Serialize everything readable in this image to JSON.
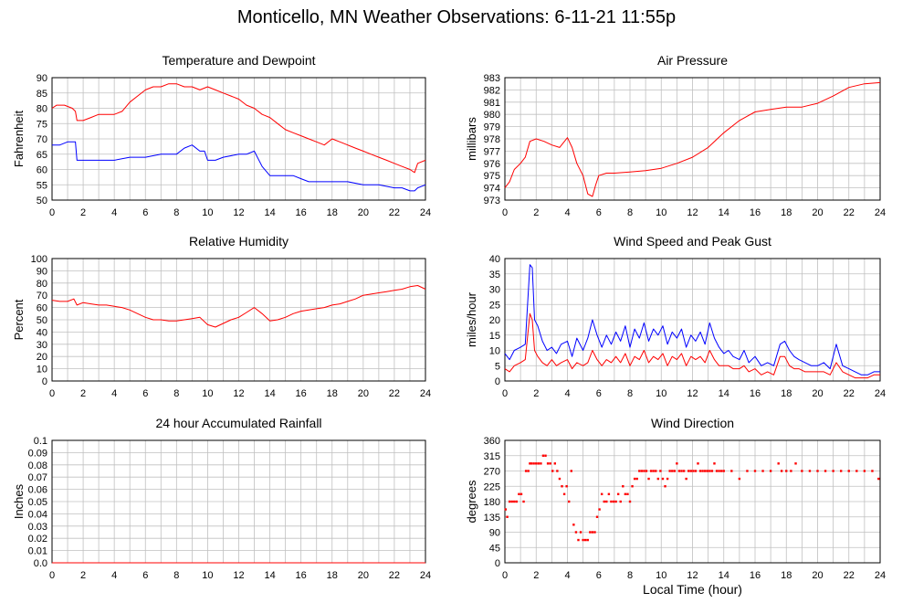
{
  "page_title": "Monticello, MN Weather Observations: 6-11-21 11:55p",
  "colors": {
    "red": "#ff0000",
    "blue": "#0000ff",
    "grid": "#c0c0c0"
  },
  "chart_data": [
    {
      "type": "line",
      "title": "Temperature and Dewpoint",
      "xlabel": "",
      "ylabel": "Fahrenheit",
      "xlim": [
        0,
        24
      ],
      "ylim": [
        50,
        90
      ],
      "xticks": [
        0,
        2,
        4,
        6,
        8,
        10,
        12,
        14,
        16,
        18,
        20,
        22,
        24
      ],
      "yticks": [
        50,
        55,
        60,
        65,
        70,
        75,
        80,
        85,
        90
      ],
      "grid": true,
      "series": [
        {
          "color": "#ff0000",
          "style": "line",
          "x": [
            0,
            0.3,
            0.8,
            1.3,
            1.5,
            1.6,
            2,
            2.5,
            3,
            3.5,
            4,
            4.5,
            5,
            5.5,
            6,
            6.5,
            7,
            7.5,
            8,
            8.5,
            9,
            9.5,
            10,
            10.5,
            11,
            11.5,
            12,
            12.5,
            13,
            13.5,
            14,
            14.5,
            15,
            15.5,
            16,
            16.5,
            17,
            17.5,
            18,
            18.5,
            19,
            19.5,
            20,
            20.5,
            21,
            21.5,
            22,
            22.5,
            23,
            23.3,
            23.5,
            24
          ],
          "y": [
            80,
            81,
            81,
            80,
            79,
            76,
            76,
            77,
            78,
            78,
            78,
            79,
            82,
            84,
            86,
            87,
            87,
            88,
            88,
            87,
            87,
            86,
            87,
            86,
            85,
            84,
            83,
            81,
            80,
            78,
            77,
            75,
            73,
            72,
            71,
            70,
            69,
            68,
            70,
            69,
            68,
            67,
            66,
            65,
            64,
            63,
            62,
            61,
            60,
            59,
            62,
            63
          ]
        },
        {
          "color": "#0000ff",
          "style": "line",
          "x": [
            0,
            0.5,
            1,
            1.5,
            1.6,
            2,
            3,
            4,
            5,
            6,
            7,
            8,
            8.5,
            9,
            9.5,
            9.8,
            10,
            10.5,
            11,
            12,
            12.5,
            13,
            13.5,
            14,
            14.5,
            15,
            15.5,
            16,
            16.5,
            17,
            18,
            19,
            20,
            21,
            22,
            22.5,
            23,
            23.3,
            23.5,
            24
          ],
          "y": [
            68,
            68,
            69,
            69,
            63,
            63,
            63,
            63,
            64,
            64,
            65,
            65,
            67,
            68,
            66,
            66,
            63,
            63,
            64,
            65,
            65,
            66,
            61,
            58,
            58,
            58,
            58,
            57,
            56,
            56,
            56,
            56,
            55,
            55,
            54,
            54,
            53,
            53,
            54,
            55
          ]
        }
      ]
    },
    {
      "type": "line",
      "title": "Air Pressure",
      "xlabel": "",
      "ylabel": "millibars",
      "xlim": [
        0,
        24
      ],
      "ylim": [
        973,
        983
      ],
      "xticks": [
        0,
        2,
        4,
        6,
        8,
        10,
        12,
        14,
        16,
        18,
        20,
        22,
        24
      ],
      "yticks": [
        973,
        974,
        975,
        976,
        977,
        978,
        979,
        980,
        981,
        982,
        983
      ],
      "grid": true,
      "series": [
        {
          "color": "#ff0000",
          "style": "line",
          "x": [
            0,
            0.3,
            0.6,
            1,
            1.3,
            1.6,
            2,
            2.5,
            3,
            3.5,
            4,
            4.3,
            4.6,
            5,
            5.3,
            5.6,
            5.8,
            6,
            6.5,
            7,
            8,
            9,
            10,
            11,
            12,
            13,
            14,
            15,
            16,
            17,
            18,
            19,
            20,
            21,
            22,
            23,
            24
          ],
          "y": [
            974,
            974.5,
            975.5,
            976,
            976.5,
            977.8,
            978,
            977.8,
            977.5,
            977.3,
            978.1,
            977.3,
            976,
            975,
            973.5,
            973.3,
            974.2,
            975,
            975.2,
            975.2,
            975.3,
            975.4,
            975.6,
            976,
            976.5,
            977.3,
            978.5,
            979.5,
            980.2,
            980.4,
            980.6,
            980.6,
            980.9,
            981.5,
            982.2,
            982.5,
            982.6
          ]
        }
      ]
    },
    {
      "type": "line",
      "title": "Relative Humidity",
      "xlabel": "",
      "ylabel": "Percent",
      "xlim": [
        0,
        24
      ],
      "ylim": [
        0,
        100
      ],
      "xticks": [
        0,
        2,
        4,
        6,
        8,
        10,
        12,
        14,
        16,
        18,
        20,
        22,
        24
      ],
      "yticks": [
        0,
        10,
        20,
        30,
        40,
        50,
        60,
        70,
        80,
        90,
        100
      ],
      "grid": true,
      "series": [
        {
          "color": "#ff0000",
          "style": "line",
          "x": [
            0,
            0.5,
            1,
            1.4,
            1.6,
            2,
            2.5,
            3,
            3.5,
            4,
            4.5,
            5,
            5.5,
            6,
            6.5,
            7,
            7.5,
            8,
            8.5,
            9,
            9.5,
            10,
            10.5,
            11,
            11.5,
            12,
            12.5,
            13,
            13.5,
            14,
            14.5,
            15,
            15.5,
            16,
            16.5,
            17,
            17.5,
            18,
            18.5,
            19,
            19.5,
            20,
            20.5,
            21,
            21.5,
            22,
            22.5,
            23,
            23.5,
            24
          ],
          "y": [
            66,
            65,
            65,
            67,
            62,
            64,
            63,
            62,
            62,
            61,
            60,
            58,
            55,
            52,
            50,
            50,
            49,
            49,
            50,
            51,
            52,
            46,
            44,
            47,
            50,
            52,
            56,
            60,
            55,
            49,
            50,
            52,
            55,
            57,
            58,
            59,
            60,
            62,
            63,
            65,
            67,
            70,
            71,
            72,
            73,
            74,
            75,
            77,
            78,
            75
          ]
        }
      ]
    },
    {
      "type": "line",
      "title": "Wind Speed and Peak Gust",
      "xlabel": "",
      "ylabel": "miles/hour",
      "xlim": [
        0,
        24
      ],
      "ylim": [
        0,
        40
      ],
      "xticks": [
        0,
        2,
        4,
        6,
        8,
        10,
        12,
        14,
        16,
        18,
        20,
        22,
        24
      ],
      "yticks": [
        0,
        5,
        10,
        15,
        20,
        25,
        30,
        35,
        40
      ],
      "grid": true,
      "series": [
        {
          "color": "#0000ff",
          "style": "line",
          "x": [
            0,
            0.3,
            0.6,
            1,
            1.3,
            1.6,
            1.75,
            1.9,
            2.1,
            2.4,
            2.7,
            3,
            3.3,
            3.6,
            4,
            4.3,
            4.6,
            5,
            5.3,
            5.6,
            5.9,
            6.2,
            6.5,
            6.8,
            7.1,
            7.4,
            7.7,
            8,
            8.3,
            8.6,
            8.9,
            9.2,
            9.5,
            9.8,
            10.1,
            10.4,
            10.7,
            11,
            11.3,
            11.6,
            11.9,
            12.2,
            12.5,
            12.8,
            13.1,
            13.4,
            13.7,
            14,
            14.3,
            14.6,
            15,
            15.3,
            15.6,
            16,
            16.4,
            16.8,
            17.2,
            17.6,
            17.9,
            18.2,
            18.5,
            18.8,
            19.2,
            19.6,
            20,
            20.4,
            20.8,
            21.2,
            21.6,
            22,
            22.4,
            22.8,
            23.2,
            23.6,
            24
          ],
          "y": [
            9,
            7,
            10,
            11,
            12,
            38,
            37,
            20,
            18,
            13,
            10,
            11,
            9,
            12,
            13,
            8,
            14,
            10,
            14,
            20,
            15,
            11,
            15,
            12,
            16,
            13,
            18,
            11,
            17,
            14,
            19,
            13,
            17,
            15,
            18,
            12,
            16,
            14,
            17,
            11,
            15,
            13,
            16,
            12,
            19,
            14,
            11,
            9,
            10,
            8,
            7,
            10,
            6,
            8,
            5,
            6,
            5,
            12,
            13,
            10,
            8,
            7,
            6,
            5,
            5,
            6,
            4,
            12,
            5,
            4,
            3,
            2,
            2,
            3,
            3
          ]
        },
        {
          "color": "#ff0000",
          "style": "line",
          "x": [
            0,
            0.3,
            0.6,
            1,
            1.3,
            1.6,
            1.75,
            1.9,
            2.1,
            2.4,
            2.7,
            3,
            3.3,
            3.6,
            4,
            4.3,
            4.6,
            5,
            5.3,
            5.6,
            5.9,
            6.2,
            6.5,
            6.8,
            7.1,
            7.4,
            7.7,
            8,
            8.3,
            8.6,
            8.9,
            9.2,
            9.5,
            9.8,
            10.1,
            10.4,
            10.7,
            11,
            11.3,
            11.6,
            11.9,
            12.2,
            12.5,
            12.8,
            13.1,
            13.4,
            13.7,
            14,
            14.3,
            14.6,
            15,
            15.3,
            15.6,
            16,
            16.4,
            16.8,
            17.2,
            17.6,
            17.9,
            18.2,
            18.5,
            18.8,
            19.2,
            19.6,
            20,
            20.4,
            20.8,
            21.2,
            21.6,
            22,
            22.4,
            22.8,
            23.2,
            23.6,
            24
          ],
          "y": [
            4,
            3,
            5,
            6,
            7,
            22,
            20,
            10,
            8,
            6,
            5,
            7,
            5,
            6,
            7,
            4,
            6,
            5,
            6,
            10,
            7,
            5,
            7,
            6,
            8,
            6,
            9,
            5,
            8,
            7,
            10,
            6,
            8,
            7,
            9,
            5,
            8,
            7,
            9,
            5,
            8,
            7,
            8,
            6,
            10,
            7,
            5,
            5,
            5,
            4,
            4,
            5,
            3,
            4,
            2,
            3,
            2,
            8,
            8,
            5,
            4,
            4,
            3,
            3,
            3,
            3,
            2,
            6,
            3,
            2,
            1,
            1,
            1,
            2,
            2
          ]
        }
      ]
    },
    {
      "type": "line",
      "title": "24 hour Accumulated Rainfall",
      "xlabel": "",
      "ylabel": "Inches",
      "xlim": [
        0,
        24
      ],
      "ylim": [
        0,
        0.1
      ],
      "xticks": [
        0,
        2,
        4,
        6,
        8,
        10,
        12,
        14,
        16,
        18,
        20,
        22,
        24
      ],
      "yticks": [
        0.0,
        0.01,
        0.02,
        0.03,
        0.04,
        0.05,
        0.06,
        0.07,
        0.08,
        0.09,
        0.1
      ],
      "ytick_labels": [
        "0.0",
        "0.01",
        "0.02",
        "0.03",
        "0.04",
        "0.05",
        "0.06",
        "0.07",
        "0.08",
        "0.09",
        "0.1"
      ],
      "grid": true,
      "series": [
        {
          "color": "#ff0000",
          "style": "line",
          "x": [
            0,
            24
          ],
          "y": [
            0,
            0
          ]
        }
      ]
    },
    {
      "type": "scatter",
      "title": "Wind Direction",
      "xlabel": "Local Time (hour)",
      "ylabel": "degrees",
      "xlim": [
        0,
        24
      ],
      "ylim": [
        0,
        360
      ],
      "xticks": [
        0,
        2,
        4,
        6,
        8,
        10,
        12,
        14,
        16,
        18,
        20,
        22,
        24
      ],
      "yticks": [
        0,
        45,
        90,
        135,
        180,
        225,
        270,
        315,
        360
      ],
      "grid": true,
      "series": [
        {
          "color": "#ff0000",
          "style": "points",
          "x": [
            0.05,
            0.15,
            0.3,
            0.45,
            0.6,
            0.75,
            0.9,
            1.05,
            1.2,
            1.35,
            1.5,
            1.6,
            1.7,
            1.85,
            2.0,
            2.15,
            2.3,
            2.45,
            2.6,
            2.75,
            2.9,
            3.05,
            3.2,
            3.35,
            3.5,
            3.65,
            3.8,
            3.95,
            4.1,
            4.25,
            4.4,
            4.55,
            4.7,
            4.85,
            5.0,
            5.15,
            5.3,
            5.45,
            5.6,
            5.75,
            5.9,
            6.05,
            6.2,
            6.35,
            6.5,
            6.65,
            6.8,
            6.95,
            7.1,
            7.25,
            7.4,
            7.55,
            7.7,
            7.85,
            8.0,
            8.15,
            8.3,
            8.45,
            8.6,
            8.75,
            8.9,
            9.05,
            9.2,
            9.35,
            9.5,
            9.65,
            9.8,
            9.95,
            10.1,
            10.25,
            10.4,
            10.55,
            10.7,
            10.85,
            11.0,
            11.15,
            11.3,
            11.45,
            11.6,
            11.75,
            11.9,
            12.05,
            12.2,
            12.35,
            12.5,
            12.65,
            12.8,
            12.95,
            13.1,
            13.25,
            13.4,
            13.55,
            13.7,
            13.85,
            14.0,
            14.5,
            15.0,
            15.5,
            16.0,
            16.5,
            17.0,
            17.5,
            17.7,
            18.0,
            18.3,
            18.6,
            19.0,
            19.5,
            20.0,
            20.5,
            21.0,
            21.5,
            22.0,
            22.5,
            23.0,
            23.5,
            23.9
          ],
          "y": [
            157,
            135,
            180,
            180,
            180,
            180,
            202,
            202,
            180,
            270,
            270,
            292,
            292,
            292,
            292,
            292,
            292,
            315,
            315,
            292,
            292,
            270,
            292,
            270,
            247,
            225,
            202,
            225,
            180,
            270,
            112,
            90,
            67,
            90,
            67,
            67,
            67,
            90,
            90,
            90,
            135,
            157,
            202,
            180,
            180,
            202,
            180,
            180,
            180,
            202,
            180,
            225,
            202,
            202,
            180,
            225,
            247,
            247,
            270,
            270,
            270,
            270,
            247,
            270,
            270,
            270,
            247,
            270,
            247,
            225,
            247,
            270,
            270,
            270,
            292,
            270,
            270,
            270,
            247,
            270,
            270,
            270,
            270,
            292,
            270,
            270,
            270,
            270,
            270,
            270,
            292,
            270,
            270,
            270,
            270,
            270,
            247,
            270,
            270,
            270,
            270,
            292,
            270,
            270,
            270,
            292,
            270,
            270,
            270,
            270,
            270,
            270,
            270,
            270,
            270,
            270,
            247
          ]
        }
      ]
    }
  ]
}
